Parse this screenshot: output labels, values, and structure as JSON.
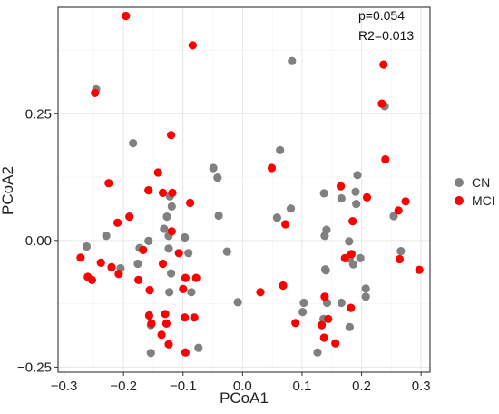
{
  "chart_data": {
    "type": "scatter",
    "xlabel": "PCoA1",
    "ylabel": "PCoA2",
    "xlim": [
      -0.31,
      0.315
    ],
    "ylim": [
      -0.26,
      0.46
    ],
    "x_ticks": [
      -0.3,
      -0.2,
      -0.1,
      0.0,
      0.1,
      0.2,
      0.3
    ],
    "y_ticks": [
      -0.25,
      0.0,
      0.25
    ],
    "x_tick_labels": [
      "−0.3",
      "−0.2",
      "−0.1",
      "0.0",
      "0.1",
      "0.2",
      "0.3"
    ],
    "y_tick_labels": [
      "−0.25",
      "0.00",
      "0.25"
    ],
    "grid": true,
    "legend_position": "right",
    "annotations": [
      "p=0.054",
      "R2=0.013"
    ],
    "series": [
      {
        "name": "CN",
        "color": "#808080",
        "points": [
          [
            -0.246,
            0.298
          ],
          [
            -0.184,
            0.192
          ],
          [
            -0.262,
            -0.012
          ],
          [
            -0.229,
            0.009
          ],
          [
            -0.205,
            -0.055
          ],
          [
            -0.173,
            -0.015
          ],
          [
            -0.176,
            -0.046
          ],
          [
            -0.158,
            -0.001
          ],
          [
            -0.122,
            0.087
          ],
          [
            -0.119,
            0.067
          ],
          [
            -0.127,
            0.047
          ],
          [
            -0.132,
            0.023
          ],
          [
            -0.124,
            0.009
          ],
          [
            -0.097,
            0.006
          ],
          [
            -0.124,
            -0.016
          ],
          [
            -0.12,
            -0.065
          ],
          [
            -0.123,
            -0.102
          ],
          [
            -0.091,
            -0.025
          ],
          [
            -0.086,
            -0.102
          ],
          [
            -0.049,
            0.143
          ],
          [
            -0.042,
            0.124
          ],
          [
            -0.04,
            0.049
          ],
          [
            -0.026,
            -0.022
          ],
          [
            -0.154,
            -0.167
          ],
          [
            -0.154,
            -0.222
          ],
          [
            -0.074,
            -0.212
          ],
          [
            -0.008,
            -0.122
          ],
          [
            0.083,
            0.354
          ],
          [
            0.063,
            0.178
          ],
          [
            0.058,
            0.045
          ],
          [
            0.081,
            0.063
          ],
          [
            0.103,
            -0.123
          ],
          [
            0.101,
            -0.141
          ],
          [
            0.126,
            -0.221
          ],
          [
            0.136,
            -0.155
          ],
          [
            0.137,
            0.093
          ],
          [
            0.138,
            0.009
          ],
          [
            0.141,
            0.021
          ],
          [
            0.139,
            -0.057
          ],
          [
            0.14,
            -0.059
          ],
          [
            0.142,
            -0.123
          ],
          [
            0.166,
            0.083
          ],
          [
            0.166,
            -0.123
          ],
          [
            0.179,
            -0.002
          ],
          [
            0.18,
            -0.036
          ],
          [
            0.186,
            -0.047
          ],
          [
            0.18,
            -0.171
          ],
          [
            0.19,
            0.096
          ],
          [
            0.193,
            0.129
          ],
          [
            0.191,
            0.072
          ],
          [
            0.198,
            -0.035
          ],
          [
            0.207,
            -0.095
          ],
          [
            0.207,
            -0.111
          ],
          [
            0.239,
            0.265
          ],
          [
            0.254,
            0.048
          ],
          [
            0.266,
            -0.021
          ]
        ]
      },
      {
        "name": "MCI",
        "color": "#FF0000",
        "points": [
          [
            -0.196,
            0.443
          ],
          [
            -0.084,
            0.385
          ],
          [
            -0.248,
            0.291
          ],
          [
            -0.225,
            0.113
          ],
          [
            -0.12,
            0.208
          ],
          [
            -0.142,
            0.134
          ],
          [
            -0.158,
            0.099
          ],
          [
            -0.134,
            0.094
          ],
          [
            -0.118,
            0.094
          ],
          [
            -0.088,
            0.074
          ],
          [
            -0.19,
            0.047
          ],
          [
            -0.21,
            0.035
          ],
          [
            -0.119,
            0.018
          ],
          [
            -0.272,
            -0.034
          ],
          [
            -0.238,
            -0.044
          ],
          [
            -0.22,
            -0.053
          ],
          [
            -0.208,
            -0.066
          ],
          [
            -0.175,
            -0.078
          ],
          [
            -0.167,
            -0.019
          ],
          [
            -0.134,
            -0.046
          ],
          [
            -0.156,
            -0.098
          ],
          [
            -0.107,
            -0.025
          ],
          [
            -0.096,
            -0.074
          ],
          [
            -0.078,
            -0.074
          ],
          [
            -0.26,
            -0.072
          ],
          [
            -0.253,
            -0.078
          ],
          [
            -0.153,
            -0.164
          ],
          [
            -0.157,
            -0.148
          ],
          [
            -0.13,
            -0.145
          ],
          [
            -0.128,
            -0.164
          ],
          [
            -0.136,
            -0.186
          ],
          [
            -0.124,
            -0.205
          ],
          [
            -0.096,
            -0.221
          ],
          [
            -0.1,
            -0.096
          ],
          [
            -0.097,
            -0.152
          ],
          [
            -0.081,
            -0.152
          ],
          [
            0.049,
            0.143
          ],
          [
            0.03,
            -0.102
          ],
          [
            0.072,
            0.032
          ],
          [
            0.068,
            -0.089
          ],
          [
            0.089,
            -0.163
          ],
          [
            0.138,
            -0.111
          ],
          [
            0.144,
            -0.155
          ],
          [
            0.133,
            -0.167
          ],
          [
            0.137,
            -0.192
          ],
          [
            0.156,
            -0.203
          ],
          [
            0.165,
            0.107
          ],
          [
            0.182,
            -0.133
          ],
          [
            0.185,
            0.038
          ],
          [
            0.183,
            -0.027
          ],
          [
            0.172,
            -0.035
          ],
          [
            0.209,
            0.085
          ],
          [
            0.234,
            0.27
          ],
          [
            0.237,
            0.347
          ],
          [
            0.24,
            0.16
          ],
          [
            0.262,
            0.059
          ],
          [
            0.274,
            0.077
          ],
          [
            0.264,
            -0.037
          ],
          [
            0.297,
            -0.058
          ]
        ]
      }
    ]
  }
}
